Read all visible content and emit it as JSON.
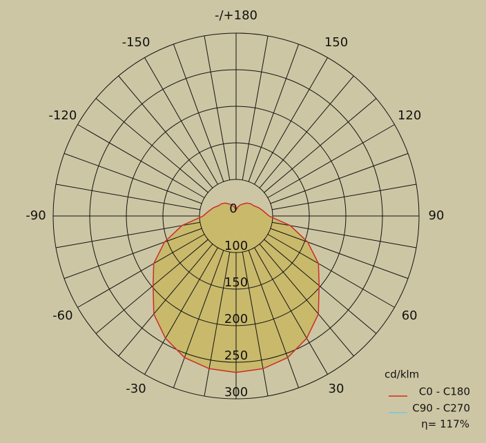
{
  "chart_data": {
    "type": "polar",
    "x": [
      -180,
      -170,
      -160,
      -150,
      -140,
      -130,
      -120,
      -110,
      -100,
      -90,
      -80,
      -70,
      -60,
      -50,
      -40,
      -30,
      -20,
      -10,
      0,
      10,
      20,
      30,
      40,
      50,
      60,
      70,
      80,
      90,
      100,
      110,
      120,
      130,
      140,
      150,
      160,
      170,
      180
    ],
    "series": [
      {
        "name": "C90 - C270",
        "color": "#6fc7e6",
        "values": [
          58,
          62,
          66,
          69,
          73,
          76,
          78,
          83,
          88,
          95,
          125,
          154,
          180,
          198,
          225,
          243,
          256,
          262,
          264,
          262,
          256,
          243,
          225,
          198,
          180,
          154,
          125,
          95,
          88,
          83,
          78,
          76,
          73,
          69,
          66,
          62,
          58
        ]
      },
      {
        "name": "C0 - C180",
        "color": "#d42a1e",
        "values": [
          58,
          62,
          66,
          69,
          73,
          76,
          78,
          83,
          88,
          95,
          125,
          154,
          180,
          198,
          225,
          243,
          256,
          262,
          264,
          262,
          256,
          243,
          225,
          198,
          180,
          154,
          125,
          95,
          88,
          83,
          78,
          76,
          73,
          69,
          66,
          62,
          58
        ]
      }
    ],
    "fill_color": "#c9b96b",
    "rlim": [
      50,
      300
    ],
    "rticks": [
      100,
      150,
      200,
      250,
      300
    ],
    "angle_ticks": [
      {
        "value": 180,
        "label": "-/+180"
      },
      150,
      120,
      90,
      60,
      30,
      0,
      -30,
      -60,
      -90,
      -120,
      -150
    ],
    "angle_grid_step": 10,
    "unit": "cd/klm",
    "efficiency": "η= 117%"
  }
}
